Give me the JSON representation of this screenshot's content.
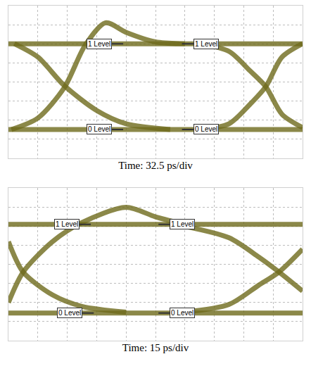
{
  "chart_data": [
    {
      "type": "line",
      "xlabel": "Time: 32.5 ps/div",
      "xlim": [
        0,
        10
      ],
      "ylim": [
        0,
        8
      ],
      "xticks": [
        0,
        1,
        2,
        3,
        4,
        5,
        6,
        7,
        8,
        9,
        10
      ],
      "yticks": [
        0,
        1,
        2,
        3,
        4,
        5,
        6,
        7,
        8
      ],
      "grid": true,
      "tick_labels": false,
      "color": "#6e6a1c",
      "series": [
        {
          "x": [
            0,
            2,
            4,
            6,
            8,
            10
          ],
          "values": [
            6,
            6,
            6,
            6,
            6,
            6
          ]
        },
        {
          "x": [
            0,
            2,
            4,
            6,
            8,
            10
          ],
          "values": [
            1.5,
            1.5,
            1.5,
            1.5,
            1.5,
            1.5
          ]
        },
        {
          "x": [
            0.1,
            1.0,
            1.9,
            2.6,
            3.3,
            4.0,
            5.0,
            6.0
          ],
          "values": [
            1.5,
            2.1,
            3.7,
            5.9,
            7.1,
            6.6,
            6.1,
            6.0
          ]
        },
        {
          "x": [
            0.2,
            1.0,
            1.9,
            3.0,
            4.0,
            5.5
          ],
          "values": [
            6.0,
            5.3,
            3.8,
            2.5,
            1.8,
            1.5
          ]
        },
        {
          "x": [
            6.5,
            7.5,
            8.2,
            8.75,
            9.3,
            10.0
          ],
          "values": [
            1.5,
            1.8,
            2.8,
            3.75,
            5.3,
            6.0
          ]
        },
        {
          "x": [
            6.5,
            7.5,
            8.2,
            8.75,
            9.3,
            10.0
          ],
          "values": [
            6.0,
            5.6,
            4.6,
            3.75,
            2.3,
            1.6
          ]
        }
      ],
      "annotations": [
        {
          "text": "1 Level",
          "x": 3.9,
          "y": 6
        },
        {
          "text": "1 Level",
          "x": 5.9,
          "y": 6
        },
        {
          "text": "0 Level",
          "x": 3.9,
          "y": 1.5
        },
        {
          "text": "0 Level",
          "x": 5.9,
          "y": 1.5
        }
      ]
    },
    {
      "type": "line",
      "xlabel": "Time: 15 ps/div",
      "xlim": [
        0,
        10
      ],
      "ylim": [
        0,
        8
      ],
      "xticks": [
        0,
        1,
        2,
        3,
        4,
        5,
        6,
        7,
        8,
        9,
        10
      ],
      "yticks": [
        0,
        1,
        2,
        3,
        4,
        5,
        6,
        7,
        8
      ],
      "grid": true,
      "tick_labels": false,
      "color": "#6e6a1c",
      "series": [
        {
          "x": [
            0,
            2,
            4,
            6,
            8,
            10
          ],
          "values": [
            6.1,
            6.1,
            6.1,
            6.1,
            6.1,
            6.1
          ]
        },
        {
          "x": [
            0,
            2,
            4,
            6,
            8,
            10
          ],
          "values": [
            1.45,
            1.45,
            1.45,
            1.45,
            1.45,
            1.45
          ]
        },
        {
          "x": [
            0,
            0.5,
            1.5,
            2.5,
            4.0,
            5.0,
            6.0
          ],
          "values": [
            2.0,
            3.6,
            5.2,
            6.2,
            7.0,
            6.5,
            6.1
          ]
        },
        {
          "x": [
            0,
            0.5,
            1.5,
            2.5,
            4.0
          ],
          "values": [
            5.2,
            3.6,
            2.4,
            1.8,
            1.5
          ]
        },
        {
          "x": [
            6.0,
            7.5,
            8.5,
            9.2,
            10.0
          ],
          "values": [
            1.5,
            1.9,
            2.9,
            3.6,
            4.8
          ]
        },
        {
          "x": [
            6.0,
            7.5,
            8.5,
            9.2,
            10.0
          ],
          "values": [
            6.0,
            5.4,
            4.4,
            3.6,
            2.6
          ]
        }
      ],
      "annotations": [
        {
          "text": "1 Level",
          "x": 2.8,
          "y": 6.1
        },
        {
          "text": "1 Level",
          "x": 5.1,
          "y": 6.1
        },
        {
          "text": "0 Level",
          "x": 2.9,
          "y": 1.45
        },
        {
          "text": "0 Level",
          "x": 5.1,
          "y": 1.45
        }
      ]
    }
  ]
}
